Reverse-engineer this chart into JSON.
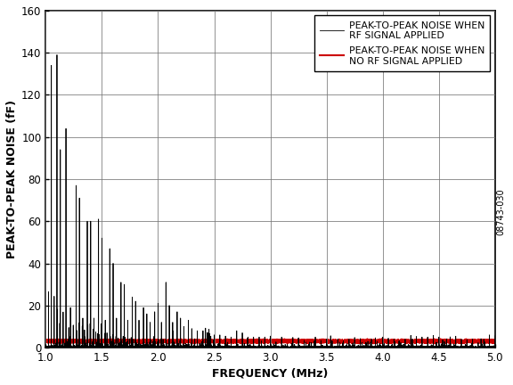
{
  "title": "",
  "xlabel": "FREQUENCY (MHz)",
  "ylabel": "PEAK-TO-PEAK NOISE (fF)",
  "xlim": [
    1.0,
    5.0
  ],
  "ylim": [
    0,
    160
  ],
  "yticks": [
    0,
    20,
    40,
    60,
    80,
    100,
    120,
    140,
    160
  ],
  "xticks": [
    1.0,
    1.5,
    2.0,
    2.5,
    3.0,
    3.5,
    4.0,
    4.5,
    5.0
  ],
  "legend_entries": [
    "PEAK-TO-PEAK NOISE WHEN\nRF SIGNAL APPLIED",
    "PEAK-TO-PEAK NOISE WHEN\nNO RF SIGNAL APPLIED"
  ],
  "line_colors": [
    "#000000",
    "#cc0000"
  ],
  "watermark": "08743-030",
  "freq_start": 1.0,
  "freq_end": 5.0,
  "freq_step": 0.0002,
  "background_color": "#ffffff",
  "grid_color": "#777777",
  "prominent_peaks": [
    [
      1.05,
      134
    ],
    [
      1.1,
      139
    ],
    [
      1.13,
      94
    ],
    [
      1.18,
      104
    ],
    [
      1.22,
      19
    ],
    [
      1.27,
      77
    ],
    [
      1.3,
      71
    ],
    [
      1.33,
      14
    ],
    [
      1.37,
      60
    ],
    [
      1.4,
      60
    ],
    [
      1.43,
      14
    ],
    [
      1.47,
      61
    ],
    [
      1.5,
      52
    ],
    [
      1.53,
      13
    ],
    [
      1.57,
      47
    ],
    [
      1.6,
      40
    ],
    [
      1.63,
      14
    ],
    [
      1.67,
      31
    ],
    [
      1.7,
      30
    ],
    [
      1.73,
      13
    ],
    [
      1.77,
      24
    ],
    [
      1.8,
      22
    ],
    [
      1.83,
      13
    ],
    [
      1.87,
      19
    ],
    [
      1.9,
      16
    ],
    [
      1.93,
      12
    ],
    [
      1.97,
      17
    ],
    [
      2.0,
      21
    ],
    [
      2.03,
      12
    ],
    [
      2.07,
      31
    ],
    [
      2.1,
      20
    ],
    [
      2.13,
      12
    ],
    [
      2.17,
      17
    ],
    [
      2.2,
      14
    ],
    [
      2.23,
      10
    ],
    [
      2.27,
      13
    ],
    [
      2.3,
      9
    ],
    [
      2.35,
      8
    ],
    [
      2.4,
      8
    ],
    [
      2.45,
      7
    ],
    [
      2.5,
      6
    ],
    [
      2.55,
      6
    ],
    [
      2.6,
      5
    ],
    [
      2.65,
      5
    ],
    [
      2.7,
      8
    ],
    [
      2.75,
      7
    ],
    [
      2.8,
      5
    ],
    [
      2.85,
      5
    ],
    [
      2.9,
      5
    ],
    [
      2.95,
      5
    ],
    [
      3.0,
      4
    ],
    [
      3.1,
      5
    ],
    [
      3.2,
      4
    ],
    [
      3.4,
      5
    ],
    [
      3.5,
      4
    ],
    [
      3.6,
      4
    ],
    [
      3.7,
      4
    ],
    [
      3.8,
      4
    ],
    [
      3.9,
      4
    ],
    [
      4.0,
      5
    ],
    [
      4.1,
      4
    ],
    [
      4.2,
      4
    ],
    [
      4.3,
      4
    ],
    [
      4.4,
      5
    ],
    [
      4.5,
      5
    ],
    [
      4.6,
      4
    ],
    [
      4.7,
      4
    ],
    [
      4.8,
      4
    ],
    [
      4.9,
      4
    ],
    [
      5.0,
      4
    ]
  ],
  "red_level": 3.0
}
